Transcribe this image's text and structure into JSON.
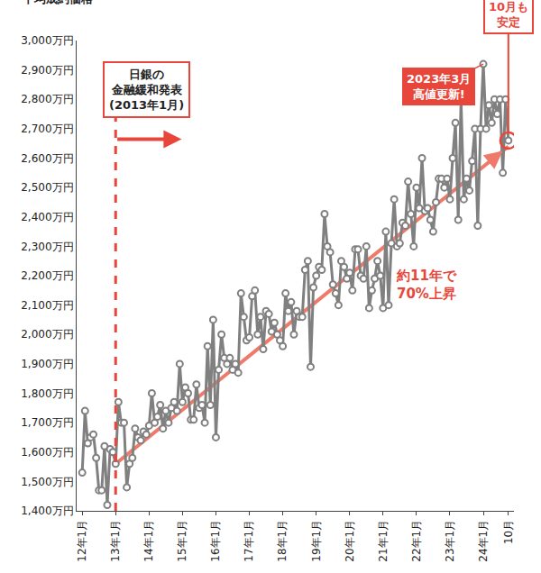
{
  "chart_data": {
    "type": "line",
    "y_label": "平均成約価格",
    "color": "#808080",
    "marker": "circle",
    "grid": false,
    "categories": [
      "12年1月",
      null,
      null,
      null,
      null,
      null,
      null,
      null,
      null,
      null,
      null,
      null,
      "13年1月",
      null,
      null,
      null,
      null,
      null,
      null,
      null,
      null,
      null,
      null,
      null,
      "14年1月",
      null,
      null,
      null,
      null,
      null,
      null,
      null,
      null,
      null,
      null,
      null,
      "15年1月",
      null,
      null,
      null,
      null,
      null,
      null,
      null,
      null,
      null,
      null,
      null,
      "16年1月",
      null,
      null,
      null,
      null,
      null,
      null,
      null,
      null,
      null,
      null,
      null,
      "17年1月",
      null,
      null,
      null,
      null,
      null,
      null,
      null,
      null,
      null,
      null,
      null,
      "18年1月",
      null,
      null,
      null,
      null,
      null,
      null,
      null,
      null,
      null,
      null,
      null,
      "19年1月",
      null,
      null,
      null,
      null,
      null,
      null,
      null,
      null,
      null,
      null,
      null,
      "20年1月",
      null,
      null,
      null,
      null,
      null,
      null,
      null,
      null,
      null,
      null,
      null,
      "21年1月",
      null,
      null,
      null,
      null,
      null,
      null,
      null,
      null,
      null,
      null,
      null,
      "22年1月",
      null,
      null,
      null,
      null,
      null,
      null,
      null,
      null,
      null,
      null,
      null,
      "23年1月",
      null,
      null,
      null,
      null,
      null,
      null,
      null,
      null,
      null,
      null,
      null,
      "24年1月",
      null,
      null,
      null,
      null,
      null,
      null,
      null,
      null,
      "10月"
    ],
    "values": [
      1530,
      1740,
      1630,
      1650,
      1660,
      1580,
      1470,
      1470,
      1620,
      1420,
      1610,
      1600,
      1560,
      1770,
      1700,
      1700,
      1480,
      1560,
      1580,
      1680,
      1650,
      1640,
      1670,
      1660,
      1690,
      1800,
      1700,
      1720,
      1760,
      1680,
      1740,
      1700,
      1750,
      1770,
      1740,
      1900,
      1770,
      1820,
      1800,
      1710,
      1710,
      1830,
      1750,
      1760,
      1700,
      1960,
      1760,
      2050,
      1650,
      1880,
      2000,
      1920,
      1900,
      1920,
      1880,
      1900,
      1870,
      2140,
      2060,
      1980,
      1990,
      2130,
      2150,
      2000,
      2060,
      1950,
      2080,
      2070,
      2010,
      2040,
      2000,
      1980,
      1960,
      2140,
      2080,
      2110,
      2000,
      2080,
      2060,
      2060,
      2220,
      2250,
      1890,
      2160,
      2200,
      2230,
      2220,
      2410,
      2300,
      2280,
      2170,
      2140,
      2100,
      2250,
      2230,
      2190,
      2210,
      2150,
      2290,
      2290,
      2200,
      2190,
      2300,
      2090,
      2150,
      2190,
      2250,
      2200,
      2090,
      2350,
      2100,
      2310,
      2460,
      2300,
      2310,
      2380,
      2370,
      2520,
      2410,
      2300,
      2500,
      2430,
      2600,
      2420,
      2430,
      2390,
      2350,
      2450,
      2530,
      2530,
      2500,
      2530,
      2460,
      2600,
      2720,
      2390,
      2800,
      2460,
      2530,
      2490,
      2590,
      2700,
      2370,
      2700,
      2920,
      2700,
      2780,
      2720,
      2800,
      2750,
      2800,
      2550,
      2800,
      2660
    ],
    "trend": {
      "x": [
        "13年1月",
        "10月"
      ],
      "values": [
        1560,
        2640
      ],
      "color": "#f07a6a"
    },
    "ylim": [
      1400,
      3000
    ],
    "yticks": [
      {
        "value": 1400,
        "label": "1,400万円"
      },
      {
        "value": 1500,
        "label": "1,500万円"
      },
      {
        "value": 1600,
        "label": "1,600万円"
      },
      {
        "value": 1700,
        "label": "1,700万円"
      },
      {
        "value": 1800,
        "label": "1,800万円"
      },
      {
        "value": 1900,
        "label": "1,900万円"
      },
      {
        "value": 2000,
        "label": "2,000万円"
      },
      {
        "value": 2100,
        "label": "2,100万円"
      },
      {
        "value": 2200,
        "label": "2,200万円"
      },
      {
        "value": 2300,
        "label": "2,300万円"
      },
      {
        "value": 2400,
        "label": "2,400万円"
      },
      {
        "value": 2500,
        "label": "2,500万円"
      },
      {
        "value": 2600,
        "label": "2,600万円"
      },
      {
        "value": 2700,
        "label": "2,700万円"
      },
      {
        "value": 2800,
        "label": "2,800万円"
      },
      {
        "value": 2900,
        "label": "2,900万円"
      },
      {
        "value": 3000,
        "label": "3,000万円"
      }
    ],
    "annotations": [
      {
        "text": "日銀の\n金融緩和発表\n(2013年1月)"
      },
      {
        "text": "約11年で\n70%上昇"
      },
      {
        "text": "2023年3月\n高値更新!"
      },
      {
        "text": "10月も\n安定"
      }
    ]
  }
}
